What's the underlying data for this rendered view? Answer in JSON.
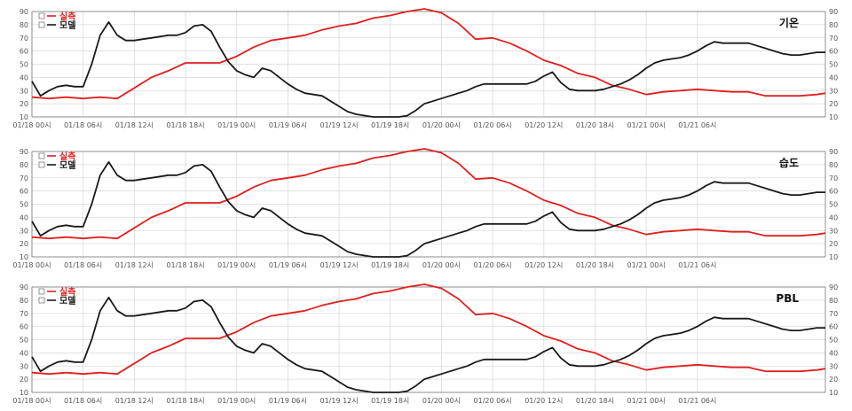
{
  "colors": {
    "observed": "#e02020",
    "model": "#1a1a1a",
    "grid": "#d9d9d9",
    "axis": "#777777",
    "tick_text": "#555555"
  },
  "legend": [
    {
      "label": "실측",
      "color": "#e02020"
    },
    {
      "label": "모델",
      "color": "#1a1a1a"
    }
  ],
  "chart_data": [
    {
      "type": "line",
      "title": "기온",
      "ylim": [
        10,
        90
      ],
      "yticks": [
        10,
        20,
        30,
        40,
        50,
        60,
        70,
        80,
        90
      ],
      "x_tick_labels": [
        "01/18 00시",
        "01/18 06시",
        "01/18 12시",
        "01/18 18시",
        "01/19 00시",
        "01/19 06시",
        "01/19 12시",
        "01/19 18시",
        "01/20 00시",
        "01/20 06시",
        "01/20 12시",
        "01/20 18시",
        "01/21 00시",
        "01/21 06시"
      ],
      "hours_span": [
        0,
        93
      ],
      "legend_position": "top-left",
      "grid": true,
      "series": [
        {
          "name": "실측",
          "hours": [
            0,
            2,
            4,
            6,
            8,
            10,
            12,
            14,
            16,
            18,
            20,
            22,
            24,
            26,
            28,
            30,
            32,
            34,
            36,
            38,
            40,
            42,
            44,
            46,
            48,
            50,
            52,
            54,
            56,
            58,
            60,
            62,
            64,
            66,
            68,
            70,
            72,
            74,
            76,
            78,
            80,
            82,
            84,
            86,
            88,
            90,
            92,
            93
          ],
          "values": [
            25,
            24,
            25,
            24,
            25,
            24,
            32,
            40,
            45,
            51,
            51,
            51,
            56,
            63,
            68,
            70,
            72,
            76,
            79,
            81,
            85,
            87,
            90,
            92,
            89,
            81,
            69,
            70,
            66,
            60,
            53,
            49,
            43,
            40,
            34,
            31,
            27,
            29,
            30,
            31,
            30,
            29,
            29,
            26,
            26,
            26,
            27,
            28
          ]
        },
        {
          "name": "모델",
          "hours": [
            0,
            1,
            2,
            3,
            4,
            5,
            6,
            7,
            8,
            9,
            10,
            11,
            12,
            13,
            14,
            15,
            16,
            17,
            18,
            19,
            20,
            21,
            22,
            23,
            24,
            25,
            26,
            27,
            28,
            29,
            30,
            31,
            32,
            33,
            34,
            35,
            36,
            37,
            38,
            39,
            40,
            41,
            42,
            43,
            44,
            45,
            46,
            47,
            48,
            49,
            50,
            51,
            52,
            53,
            54,
            55,
            56,
            57,
            58,
            59,
            60,
            61,
            62,
            63,
            64,
            65,
            66,
            67,
            68,
            69,
            70,
            71,
            72,
            73,
            74,
            75,
            76,
            77,
            78,
            79,
            80,
            81,
            82,
            83,
            84,
            85,
            86,
            87,
            88,
            89,
            90,
            91,
            92,
            93
          ],
          "values": [
            37,
            26,
            30,
            33,
            34,
            33,
            33,
            50,
            72,
            82,
            72,
            68,
            68,
            69,
            70,
            71,
            72,
            72,
            74,
            79,
            80,
            75,
            63,
            52,
            45,
            42,
            40,
            47,
            45,
            40,
            35,
            31,
            28,
            27,
            26,
            22,
            18,
            14,
            12,
            11,
            10,
            10,
            10,
            10,
            11,
            15,
            20,
            22,
            24,
            26,
            28,
            30,
            33,
            35,
            35,
            35,
            35,
            35,
            35,
            37,
            41,
            44,
            36,
            31,
            30,
            30,
            30,
            31,
            33,
            35,
            38,
            42,
            47,
            51,
            53,
            54,
            55,
            57,
            60,
            64,
            67,
            66,
            66,
            66,
            66,
            64,
            62,
            60,
            58,
            57,
            57,
            58,
            59,
            59
          ]
        }
      ]
    },
    {
      "type": "line",
      "title": "습도",
      "ylim": [
        10,
        90
      ],
      "yticks": [
        10,
        20,
        30,
        40,
        50,
        60,
        70,
        80,
        90
      ],
      "x_tick_labels": [
        "01/18 00시",
        "01/18 06시",
        "01/18 12시",
        "01/18 18시",
        "01/19 00시",
        "01/19 06시",
        "01/19 12시",
        "01/19 18시",
        "01/20 00시",
        "01/20 06시",
        "01/20 12시",
        "01/20 18시",
        "01/21 00시",
        "01/21 06시"
      ],
      "hours_span": [
        0,
        93
      ],
      "legend_position": "top-left",
      "grid": true,
      "series": [
        {
          "name": "실측",
          "hours": [
            0,
            2,
            4,
            6,
            8,
            10,
            12,
            14,
            16,
            18,
            20,
            22,
            24,
            26,
            28,
            30,
            32,
            34,
            36,
            38,
            40,
            42,
            44,
            46,
            48,
            50,
            52,
            54,
            56,
            58,
            60,
            62,
            64,
            66,
            68,
            70,
            72,
            74,
            76,
            78,
            80,
            82,
            84,
            86,
            88,
            90,
            92,
            93
          ],
          "values": [
            25,
            24,
            25,
            24,
            25,
            24,
            32,
            40,
            45,
            51,
            51,
            51,
            56,
            63,
            68,
            70,
            72,
            76,
            79,
            81,
            85,
            87,
            90,
            92,
            89,
            81,
            69,
            70,
            66,
            60,
            53,
            49,
            43,
            40,
            34,
            31,
            27,
            29,
            30,
            31,
            30,
            29,
            29,
            26,
            26,
            26,
            27,
            28
          ]
        },
        {
          "name": "모델",
          "hours": [
            0,
            1,
            2,
            3,
            4,
            5,
            6,
            7,
            8,
            9,
            10,
            11,
            12,
            13,
            14,
            15,
            16,
            17,
            18,
            19,
            20,
            21,
            22,
            23,
            24,
            25,
            26,
            27,
            28,
            29,
            30,
            31,
            32,
            33,
            34,
            35,
            36,
            37,
            38,
            39,
            40,
            41,
            42,
            43,
            44,
            45,
            46,
            47,
            48,
            49,
            50,
            51,
            52,
            53,
            54,
            55,
            56,
            57,
            58,
            59,
            60,
            61,
            62,
            63,
            64,
            65,
            66,
            67,
            68,
            69,
            70,
            71,
            72,
            73,
            74,
            75,
            76,
            77,
            78,
            79,
            80,
            81,
            82,
            83,
            84,
            85,
            86,
            87,
            88,
            89,
            90,
            91,
            92,
            93
          ],
          "values": [
            37,
            26,
            30,
            33,
            34,
            33,
            33,
            50,
            72,
            82,
            72,
            68,
            68,
            69,
            70,
            71,
            72,
            72,
            74,
            79,
            80,
            75,
            63,
            52,
            45,
            42,
            40,
            47,
            45,
            40,
            35,
            31,
            28,
            27,
            26,
            22,
            18,
            14,
            12,
            11,
            10,
            10,
            10,
            10,
            11,
            15,
            20,
            22,
            24,
            26,
            28,
            30,
            33,
            35,
            35,
            35,
            35,
            35,
            35,
            37,
            41,
            44,
            36,
            31,
            30,
            30,
            30,
            31,
            33,
            35,
            38,
            42,
            47,
            51,
            53,
            54,
            55,
            57,
            60,
            64,
            67,
            66,
            66,
            66,
            66,
            64,
            62,
            60,
            58,
            57,
            57,
            58,
            59,
            59
          ]
        }
      ]
    },
    {
      "type": "line",
      "title": "PBL",
      "ylim": [
        10,
        90
      ],
      "yticks": [
        10,
        20,
        30,
        40,
        50,
        60,
        70,
        80,
        90
      ],
      "x_tick_labels": [
        "01/18 00시",
        "01/18 06시",
        "01/18 12시",
        "01/18 18시",
        "01/19 00시",
        "01/19 06시",
        "01/19 12시",
        "01/19 18시",
        "01/20 00시",
        "01/20 06시",
        "01/20 12시",
        "01/20 18시",
        "01/21 00시",
        "01/21 06시"
      ],
      "hours_span": [
        0,
        93
      ],
      "legend_position": "top-left",
      "grid": true,
      "series": [
        {
          "name": "실측",
          "hours": [
            0,
            2,
            4,
            6,
            8,
            10,
            12,
            14,
            16,
            18,
            20,
            22,
            24,
            26,
            28,
            30,
            32,
            34,
            36,
            38,
            40,
            42,
            44,
            46,
            48,
            50,
            52,
            54,
            56,
            58,
            60,
            62,
            64,
            66,
            68,
            70,
            72,
            74,
            76,
            78,
            80,
            82,
            84,
            86,
            88,
            90,
            92,
            93
          ],
          "values": [
            25,
            24,
            25,
            24,
            25,
            24,
            32,
            40,
            45,
            51,
            51,
            51,
            56,
            63,
            68,
            70,
            72,
            76,
            79,
            81,
            85,
            87,
            90,
            92,
            89,
            81,
            69,
            70,
            66,
            60,
            53,
            49,
            43,
            40,
            34,
            31,
            27,
            29,
            30,
            31,
            30,
            29,
            29,
            26,
            26,
            26,
            27,
            28
          ]
        },
        {
          "name": "모델",
          "hours": [
            0,
            1,
            2,
            3,
            4,
            5,
            6,
            7,
            8,
            9,
            10,
            11,
            12,
            13,
            14,
            15,
            16,
            17,
            18,
            19,
            20,
            21,
            22,
            23,
            24,
            25,
            26,
            27,
            28,
            29,
            30,
            31,
            32,
            33,
            34,
            35,
            36,
            37,
            38,
            39,
            40,
            41,
            42,
            43,
            44,
            45,
            46,
            47,
            48,
            49,
            50,
            51,
            52,
            53,
            54,
            55,
            56,
            57,
            58,
            59,
            60,
            61,
            62,
            63,
            64,
            65,
            66,
            67,
            68,
            69,
            70,
            71,
            72,
            73,
            74,
            75,
            76,
            77,
            78,
            79,
            80,
            81,
            82,
            83,
            84,
            85,
            86,
            87,
            88,
            89,
            90,
            91,
            92,
            93
          ],
          "values": [
            37,
            26,
            30,
            33,
            34,
            33,
            33,
            50,
            72,
            82,
            72,
            68,
            68,
            69,
            70,
            71,
            72,
            72,
            74,
            79,
            80,
            75,
            63,
            52,
            45,
            42,
            40,
            47,
            45,
            40,
            35,
            31,
            28,
            27,
            26,
            22,
            18,
            14,
            12,
            11,
            10,
            10,
            10,
            10,
            11,
            15,
            20,
            22,
            24,
            26,
            28,
            30,
            33,
            35,
            35,
            35,
            35,
            35,
            35,
            37,
            41,
            44,
            36,
            31,
            30,
            30,
            30,
            31,
            33,
            35,
            38,
            42,
            47,
            51,
            53,
            54,
            55,
            57,
            60,
            64,
            67,
            66,
            66,
            66,
            66,
            64,
            62,
            60,
            58,
            57,
            57,
            58,
            59,
            59
          ]
        }
      ]
    }
  ]
}
